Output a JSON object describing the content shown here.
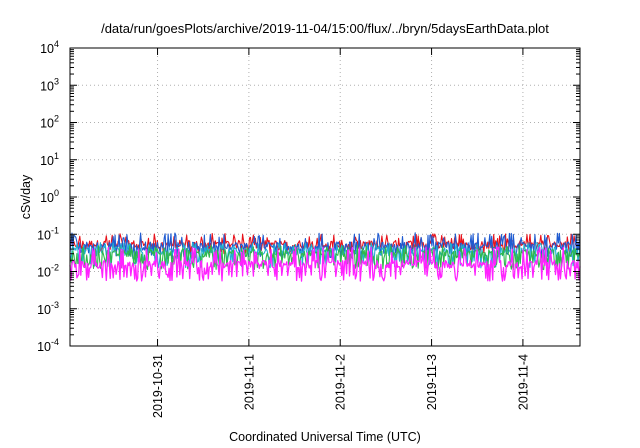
{
  "chart_data": {
    "type": "line",
    "title": "/data/run/goesPlots/archive/2019-11-04/15:00/flux/../bryn/5daysEarthData.plot",
    "xlabel": "Coordinated Universal Time (UTC)",
    "ylabel": "cSv/day",
    "yscale": "log",
    "ylim": [
      0.0001,
      10000
    ],
    "y_tick_labels": [
      {
        "base": "10",
        "exp": "-4"
      },
      {
        "base": "10",
        "exp": "-3"
      },
      {
        "base": "10",
        "exp": "-2"
      },
      {
        "base": "10",
        "exp": "-1"
      },
      {
        "base": "10",
        "exp": "0"
      },
      {
        "base": "10",
        "exp": "1"
      },
      {
        "base": "10",
        "exp": "2"
      },
      {
        "base": "10",
        "exp": "3"
      },
      {
        "base": "10",
        "exp": "4"
      }
    ],
    "xlim": [
      "2019-10-30T01:00",
      "2019-11-04T15:00"
    ],
    "x_ticks": [
      "2019-10-31",
      "2019-11-1",
      "2019-11-2",
      "2019-11-3",
      "2019-11-4"
    ],
    "x_tick_values": [
      "2019-10-31T00:00",
      "2019-11-01T00:00",
      "2019-11-02T00:00",
      "2019-11-03T00:00",
      "2019-11-04T00:00"
    ],
    "grid": true,
    "series": [
      {
        "color": "#e8121b",
        "base": 0.055,
        "low": 0.03,
        "high": 0.105,
        "note_values_estimated": "noisy band"
      },
      {
        "color": "#1f5bd1",
        "base": 0.05,
        "low": 0.022,
        "high": 0.11
      },
      {
        "color": "#20b0d0",
        "base": 0.035,
        "low": 0.012,
        "high": 0.06
      },
      {
        "color": "#2eb84c",
        "base": 0.03,
        "low": 0.011,
        "high": 0.05
      },
      {
        "color": "#ff22ff",
        "base": 0.016,
        "low": 0.0055,
        "high": 0.045
      }
    ]
  }
}
